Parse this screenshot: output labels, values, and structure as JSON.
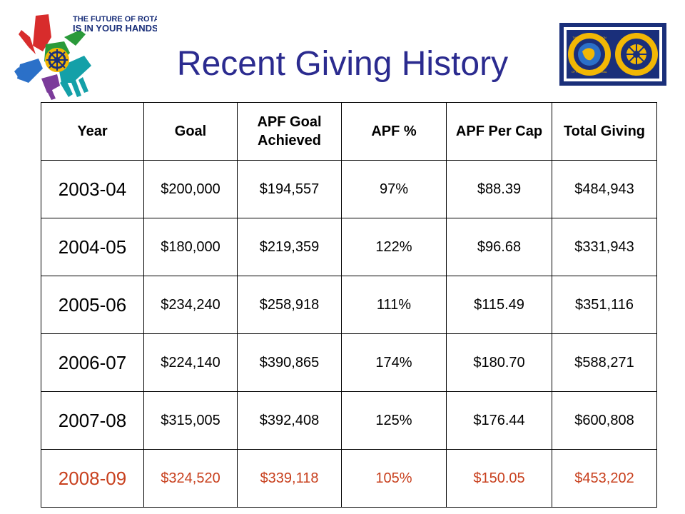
{
  "header": {
    "title": "Recent Giving History",
    "logo_left_text": [
      "THE FUTURE OF ROTARY",
      "IS IN YOUR HANDS"
    ],
    "logo_right_text": [
      "THE ROTARY FOUNDATION",
      "OF ROTARY INTERNATIONAL",
      "ROTARY",
      "INTERNATIONAL"
    ]
  },
  "table": {
    "columns": [
      "Year",
      "Goal",
      "APF Goal Achieved",
      "APF %",
      "APF Per Cap",
      "Total Giving"
    ],
    "rows": [
      [
        "2003-04",
        "$200,000",
        "$194,557",
        "97%",
        "$88.39",
        "$484,943"
      ],
      [
        "2004-05",
        "$180,000",
        "$219,359",
        "122%",
        "$96.68",
        "$331,943"
      ],
      [
        "2005-06",
        "$234,240",
        "$258,918",
        "111%",
        "$115.49",
        "$351,116"
      ],
      [
        "2006-07",
        "$224,140",
        "$390,865",
        "174%",
        "$180.70",
        "$588,271"
      ],
      [
        "2007-08",
        "$315,005",
        "$392,408",
        "125%",
        "$176.44",
        "$600,808"
      ],
      [
        "2008-09",
        "$324,520",
        "$339,118",
        "105%",
        "$150.05",
        "$453,202"
      ]
    ],
    "highlight_row_index": 5
  },
  "colors": {
    "title": "#2b2b8f",
    "highlight_row": "#c8401e",
    "logo_navy": "#1a2f7a",
    "logo_gold": "#f2b705"
  },
  "icons": {
    "logo_left": "rotary-hands-logo-icon",
    "logo_right": "rotary-foundation-emblems-icon"
  }
}
